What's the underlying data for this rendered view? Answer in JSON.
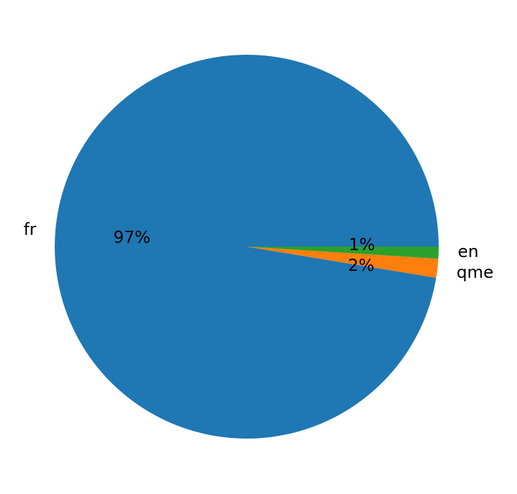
{
  "chart_data": {
    "type": "pie",
    "title": "",
    "start_angle_deg": 0,
    "direction": "counterclockwise",
    "slices": [
      {
        "label": "fr",
        "value": 97.4,
        "pct_label": "97%",
        "color": "#1f77b4"
      },
      {
        "label": "qme",
        "value": 1.6,
        "pct_label": "2%",
        "color": "#ff7f0e"
      },
      {
        "label": "en",
        "value": 1.0,
        "pct_label": "1%",
        "color": "#2ca02c"
      }
    ]
  }
}
